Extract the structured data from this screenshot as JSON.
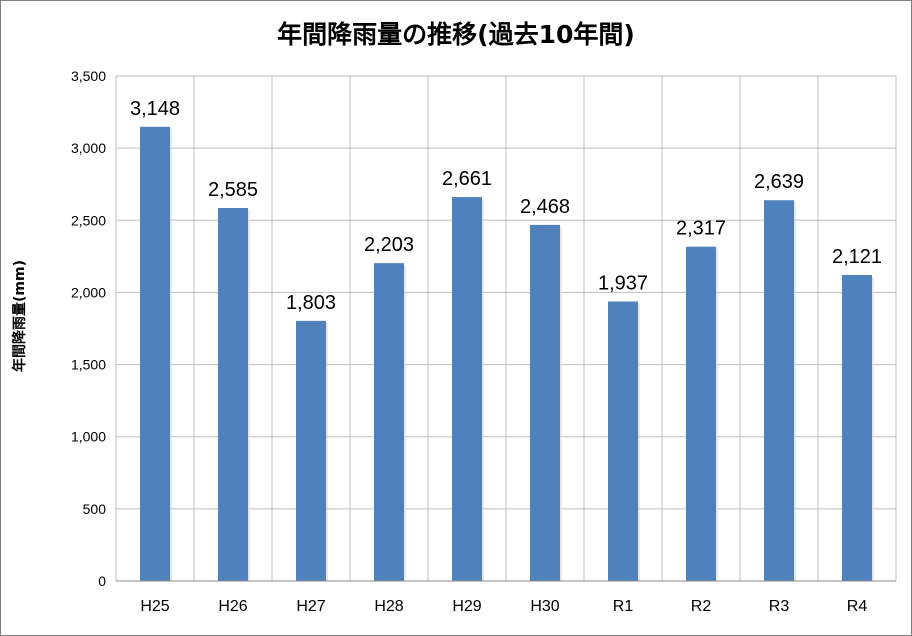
{
  "chart_data": {
    "type": "bar",
    "title": "年間降雨量の推移(過去10年間)",
    "ylabel": "年間降雨量(mm)",
    "xlabel": "",
    "categories": [
      "H25",
      "H26",
      "H27",
      "H28",
      "H29",
      "H30",
      "R1",
      "R2",
      "R3",
      "R4"
    ],
    "values": [
      3148,
      2585,
      1803,
      2203,
      2661,
      2468,
      1937,
      2317,
      2639,
      2121
    ],
    "data_labels": [
      "3,148",
      "2,585",
      "1,803",
      "2,203",
      "2,661",
      "2,468",
      "1,937",
      "2,317",
      "2,639",
      "2,121"
    ],
    "ylim": [
      0,
      3500
    ],
    "yticks": [
      0,
      500,
      1000,
      1500,
      2000,
      2500,
      3000,
      3500
    ],
    "ytick_labels": [
      "0",
      "500",
      "1,000",
      "1,500",
      "2,000",
      "2,500",
      "3,000",
      "3,500"
    ],
    "grid": true,
    "legend": "none",
    "bar_color": "#4f81bd",
    "grid_color": "#bfbfbf"
  }
}
